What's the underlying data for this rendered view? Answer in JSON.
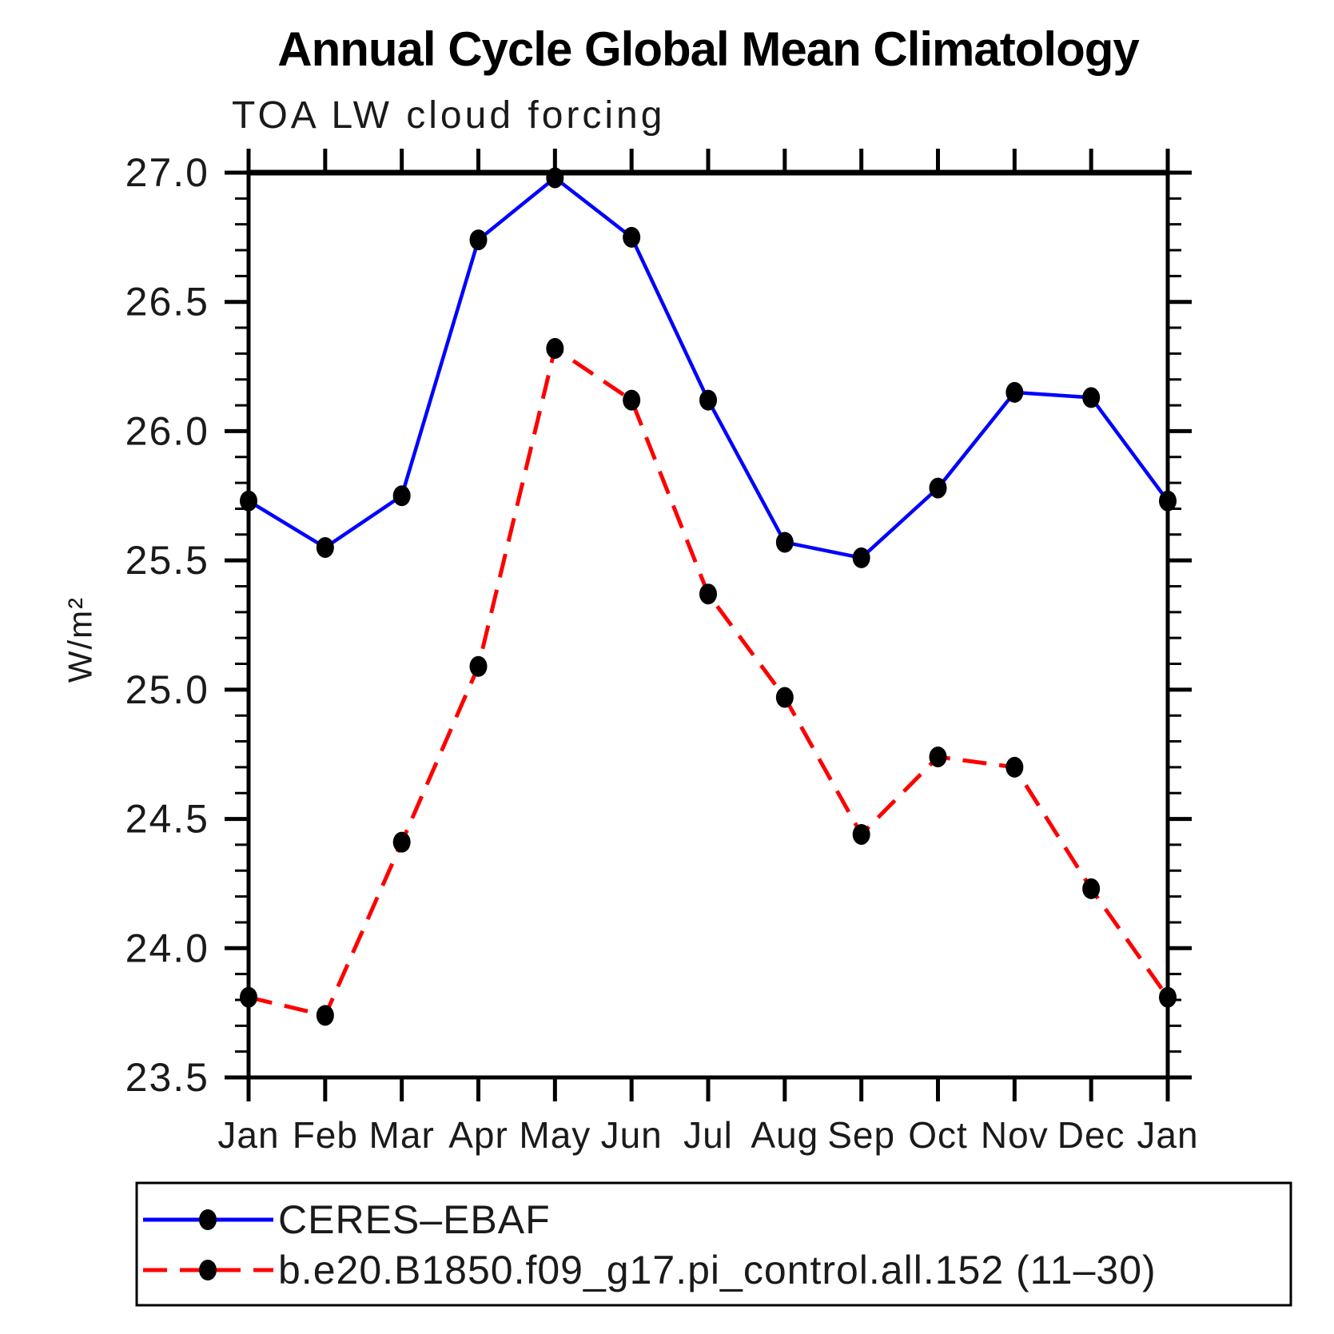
{
  "page": {
    "background": "#ffffff"
  },
  "chart_data": {
    "type": "line",
    "title": "Annual Cycle Global Mean Climatology",
    "subtitle": "TOA LW cloud forcing",
    "ylabel": "W/m²",
    "xlabel": "",
    "categories": [
      "Jan",
      "Feb",
      "Mar",
      "Apr",
      "May",
      "Jun",
      "Jul",
      "Aug",
      "Sep",
      "Oct",
      "Nov",
      "Dec",
      "Jan"
    ],
    "ylim": [
      23.5,
      27.0
    ],
    "y_major_step": 0.5,
    "y_minor_step": 0.1,
    "y_tick_labels": [
      "27.0",
      "26.5",
      "26.0",
      "25.5",
      "25.0",
      "24.5",
      "24.0",
      "23.5"
    ],
    "grid": false,
    "legend_position": "bottom",
    "axis_color": "#000000",
    "marker_color": "#000000",
    "series": [
      {
        "name": "CERES–EBAF",
        "color": "#0000ff",
        "line_style": "solid",
        "marker": "circle",
        "values": [
          25.73,
          25.55,
          25.75,
          26.74,
          26.98,
          26.75,
          26.12,
          25.57,
          25.51,
          25.78,
          26.15,
          26.13,
          25.73
        ]
      },
      {
        "name": "b.e20.B1850.f09_g17.pi_control.all.152 (11–30)",
        "color": "#ff0000",
        "line_style": "dashed",
        "marker": "circle",
        "values": [
          23.81,
          23.74,
          24.41,
          25.09,
          26.32,
          26.12,
          25.37,
          24.97,
          24.44,
          24.74,
          24.7,
          24.23,
          23.81
        ]
      }
    ]
  }
}
